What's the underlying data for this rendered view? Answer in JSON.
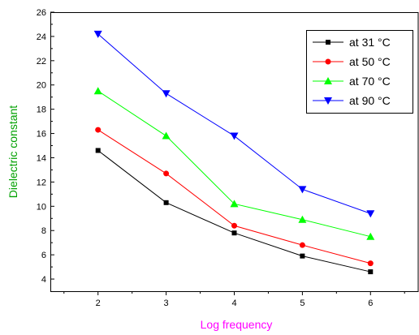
{
  "chart_data": {
    "type": "line",
    "xlabel": "Log frequency",
    "ylabel": "Dielectric constant",
    "xlabel_color": "#ff00ff",
    "ylabel_color": "#00a000",
    "x": [
      2,
      3,
      4,
      5,
      6
    ],
    "xlim": [
      1.3,
      6.7
    ],
    "ylim": [
      3,
      26
    ],
    "x_ticks": [
      "2",
      "3",
      "4",
      "5",
      "6"
    ],
    "y_ticks": [
      "4",
      "6",
      "8",
      "10",
      "12",
      "14",
      "16",
      "18",
      "20",
      "22",
      "24",
      "26"
    ],
    "grid": false,
    "legend_position": "top-right",
    "series": [
      {
        "name": "at 31 °C",
        "marker": "square",
        "color": "#000000",
        "values": [
          14.6,
          10.3,
          7.8,
          5.9,
          4.6
        ]
      },
      {
        "name": "at 50 °C",
        "marker": "circle",
        "color": "#ff0000",
        "values": [
          16.3,
          12.7,
          8.4,
          6.8,
          5.3
        ]
      },
      {
        "name": "at 70 °C",
        "marker": "triangle-up",
        "color": "#00ff00",
        "values": [
          19.5,
          15.8,
          10.2,
          8.9,
          7.5
        ]
      },
      {
        "name": "at 90 °C",
        "marker": "triangle-down",
        "color": "#0000ff",
        "values": [
          24.2,
          19.3,
          15.8,
          11.4,
          9.4
        ]
      }
    ]
  }
}
